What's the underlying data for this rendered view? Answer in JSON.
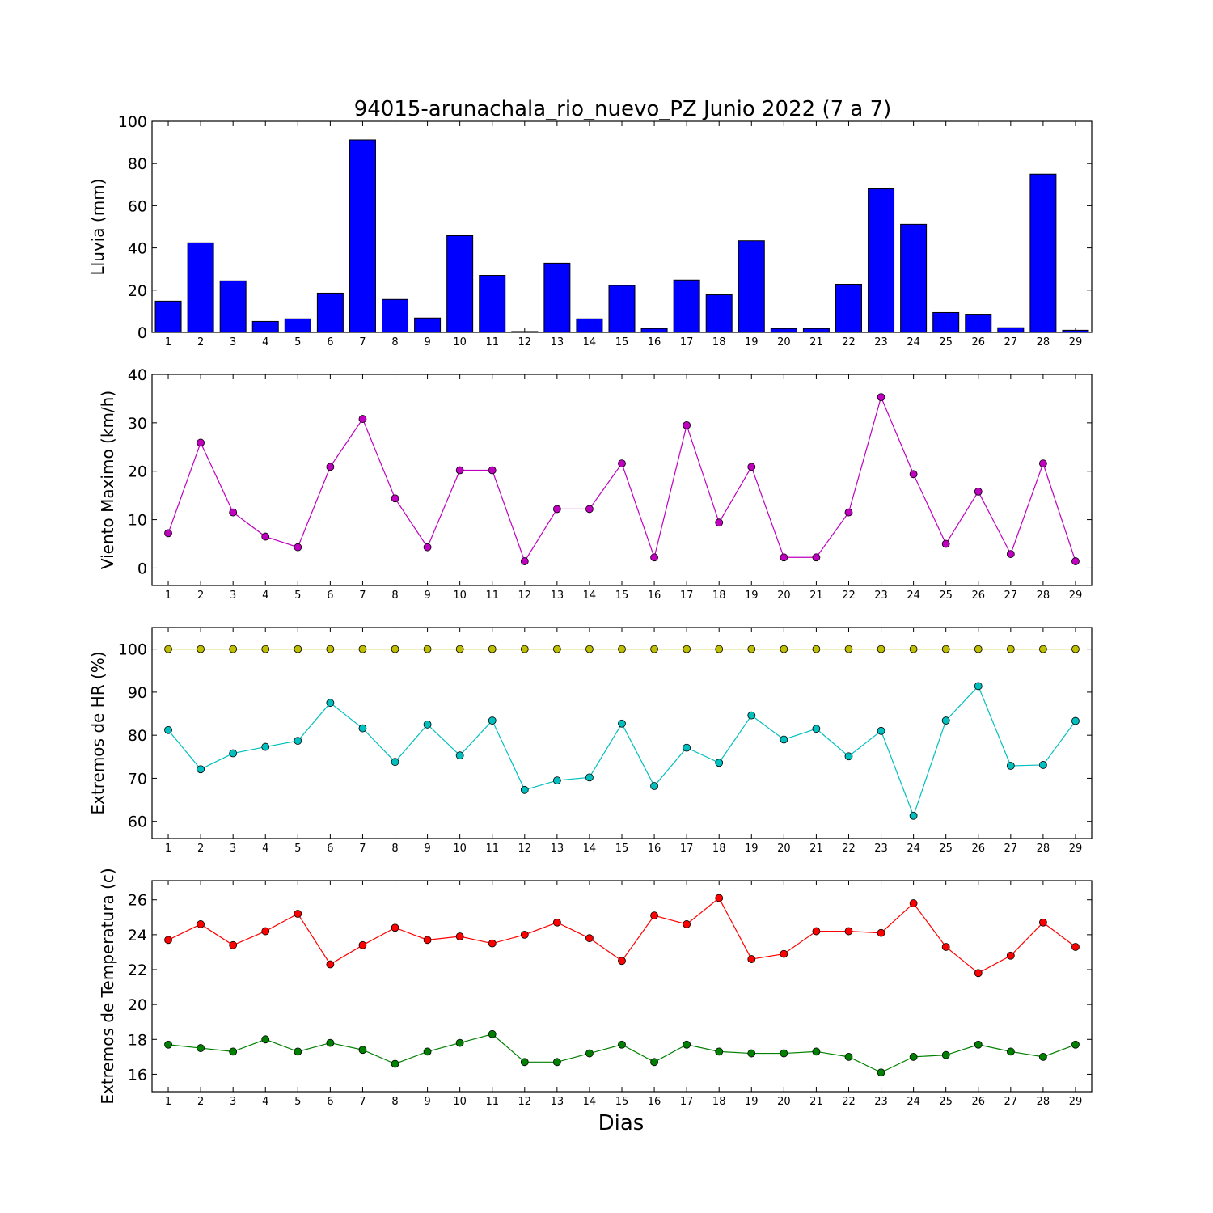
{
  "title": "94015-arunachala_rio_nuevo_PZ Junio 2022  (7 a 7)",
  "xlabel": "Dias",
  "days": [
    1,
    2,
    3,
    4,
    5,
    6,
    7,
    8,
    9,
    10,
    11,
    12,
    13,
    14,
    15,
    16,
    17,
    18,
    19,
    20,
    21,
    22,
    23,
    24,
    25,
    26,
    27,
    28,
    29
  ],
  "chart_data": [
    {
      "type": "bar",
      "ylabel": "Lluvia (mm)",
      "ylim": [
        0,
        100
      ],
      "yticks": [
        0,
        20,
        40,
        60,
        80,
        100
      ],
      "series": [
        {
          "color": "#0000ff",
          "values": [
            14.8,
            42.4,
            24.4,
            5.2,
            6.4,
            18.6,
            91.2,
            15.6,
            6.8,
            45.8,
            27.0,
            0.4,
            32.8,
            6.4,
            22.2,
            1.8,
            24.8,
            17.8,
            43.4,
            1.8,
            1.8,
            22.8,
            68.0,
            51.2,
            9.4,
            8.6,
            2.2,
            75.0,
            1.0
          ]
        }
      ]
    },
    {
      "type": "line",
      "ylabel": "Viento Maximo (km/h)",
      "ylim": [
        -3.6,
        40
      ],
      "yticks": [
        0,
        10,
        20,
        30,
        40
      ],
      "series": [
        {
          "color": "#bf00bf",
          "values": [
            7.2,
            25.9,
            11.5,
            6.5,
            4.3,
            20.9,
            30.8,
            14.4,
            4.3,
            20.2,
            20.2,
            1.4,
            12.2,
            12.2,
            21.6,
            2.2,
            29.5,
            9.4,
            20.9,
            2.2,
            2.2,
            11.5,
            35.3,
            19.4,
            5.0,
            15.8,
            2.9,
            21.6,
            1.4
          ]
        }
      ]
    },
    {
      "type": "line",
      "ylabel": "Extremos de HR (%)",
      "ylim": [
        56,
        105
      ],
      "yticks": [
        60,
        70,
        80,
        90,
        100
      ],
      "series": [
        {
          "color": "#bfbf00",
          "values": [
            100,
            100,
            100,
            100,
            100,
            100,
            100,
            100,
            100,
            100,
            100,
            100,
            100,
            100,
            100,
            100,
            100,
            100,
            100,
            100,
            100,
            100,
            100,
            100,
            100,
            100,
            100,
            100,
            100
          ]
        },
        {
          "color": "#00bfbf",
          "values": [
            81.2,
            72.1,
            75.8,
            77.3,
            78.7,
            87.5,
            81.6,
            73.8,
            82.5,
            75.3,
            83.4,
            67.3,
            69.5,
            70.2,
            82.7,
            68.2,
            77.1,
            73.6,
            84.6,
            79.0,
            81.5,
            75.1,
            81.0,
            61.3,
            83.4,
            91.4,
            72.9,
            73.1,
            83.3
          ]
        }
      ]
    },
    {
      "type": "line",
      "ylabel": "Extremos de Temperatura (c)",
      "ylim": [
        15,
        27.1
      ],
      "yticks": [
        16,
        18,
        20,
        22,
        24,
        26
      ],
      "series": [
        {
          "color": "#ff0000",
          "values": [
            23.7,
            24.6,
            23.4,
            24.2,
            25.2,
            22.3,
            23.4,
            24.4,
            23.7,
            23.9,
            23.5,
            24.0,
            24.7,
            23.8,
            22.5,
            25.1,
            24.6,
            26.1,
            22.6,
            22.9,
            24.2,
            24.2,
            24.1,
            25.8,
            23.3,
            21.8,
            22.8,
            24.7,
            23.3
          ]
        },
        {
          "color": "#008000",
          "values": [
            17.7,
            17.5,
            17.3,
            18.0,
            17.3,
            17.8,
            17.4,
            16.6,
            17.3,
            17.8,
            18.3,
            16.7,
            16.7,
            17.2,
            17.7,
            16.7,
            17.7,
            17.3,
            17.2,
            17.2,
            17.3,
            17.0,
            16.1,
            17.0,
            17.1,
            17.7,
            17.3,
            17.0,
            17.7
          ]
        }
      ]
    }
  ]
}
